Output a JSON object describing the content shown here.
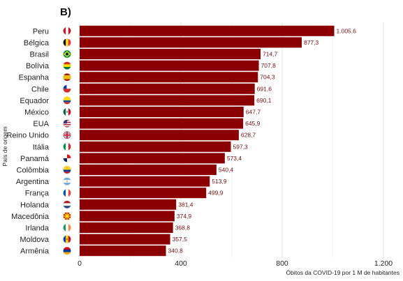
{
  "chart_data": {
    "type": "bar",
    "orientation": "horizontal",
    "panel_label": "B)",
    "ylabel": "País de origem",
    "xlabel": "Óbitos da COVID-19 por 1 M de habitantes",
    "xlim": [
      0,
      1200
    ],
    "x_ticks": [
      0,
      400,
      800,
      1200
    ],
    "x_tick_labels": [
      "0",
      "400",
      "800",
      "1.200"
    ],
    "grid": "vertical-major",
    "bar_color": "#8b0000",
    "label_color": "#7a0c0c",
    "categories": [
      "Peru",
      "Bélgica",
      "Brasil",
      "Bolívia",
      "Espanha",
      "Chile",
      "Equador",
      "México",
      "EUA",
      "Reino Unido",
      "Itália",
      "Panamá",
      "Colômbia",
      "Argentina",
      "França",
      "Holanda",
      "Macedônia",
      "Irlanda",
      "Moldova",
      "Armênia"
    ],
    "values": [
      1005.6,
      877.3,
      714.7,
      707.8,
      704.3,
      691.6,
      690.1,
      647.7,
      645.9,
      628.7,
      597.3,
      573.4,
      540.4,
      513.9,
      499.9,
      381.4,
      374.9,
      368.8,
      357.5,
      340.8
    ],
    "value_labels": [
      "1.005,6",
      "877,3",
      "714,7",
      "707,8",
      "704,3",
      "691,6",
      "690,1",
      "647,7",
      "645,9",
      "628,7",
      "597,3",
      "573,4",
      "540,4",
      "513,9",
      "499,9",
      "381,4",
      "374,9",
      "368,8",
      "357,5",
      "340,8"
    ],
    "flag_icons": [
      "peru-flag-icon",
      "belgium-flag-icon",
      "brazil-flag-icon",
      "bolivia-flag-icon",
      "spain-flag-icon",
      "chile-flag-icon",
      "ecuador-flag-icon",
      "mexico-flag-icon",
      "usa-flag-icon",
      "uk-flag-icon",
      "italy-flag-icon",
      "panama-flag-icon",
      "colombia-flag-icon",
      "argentina-flag-icon",
      "france-flag-icon",
      "netherlands-flag-icon",
      "north-macedonia-flag-icon",
      "ireland-flag-icon",
      "moldova-flag-icon",
      "armenia-flag-icon"
    ]
  }
}
